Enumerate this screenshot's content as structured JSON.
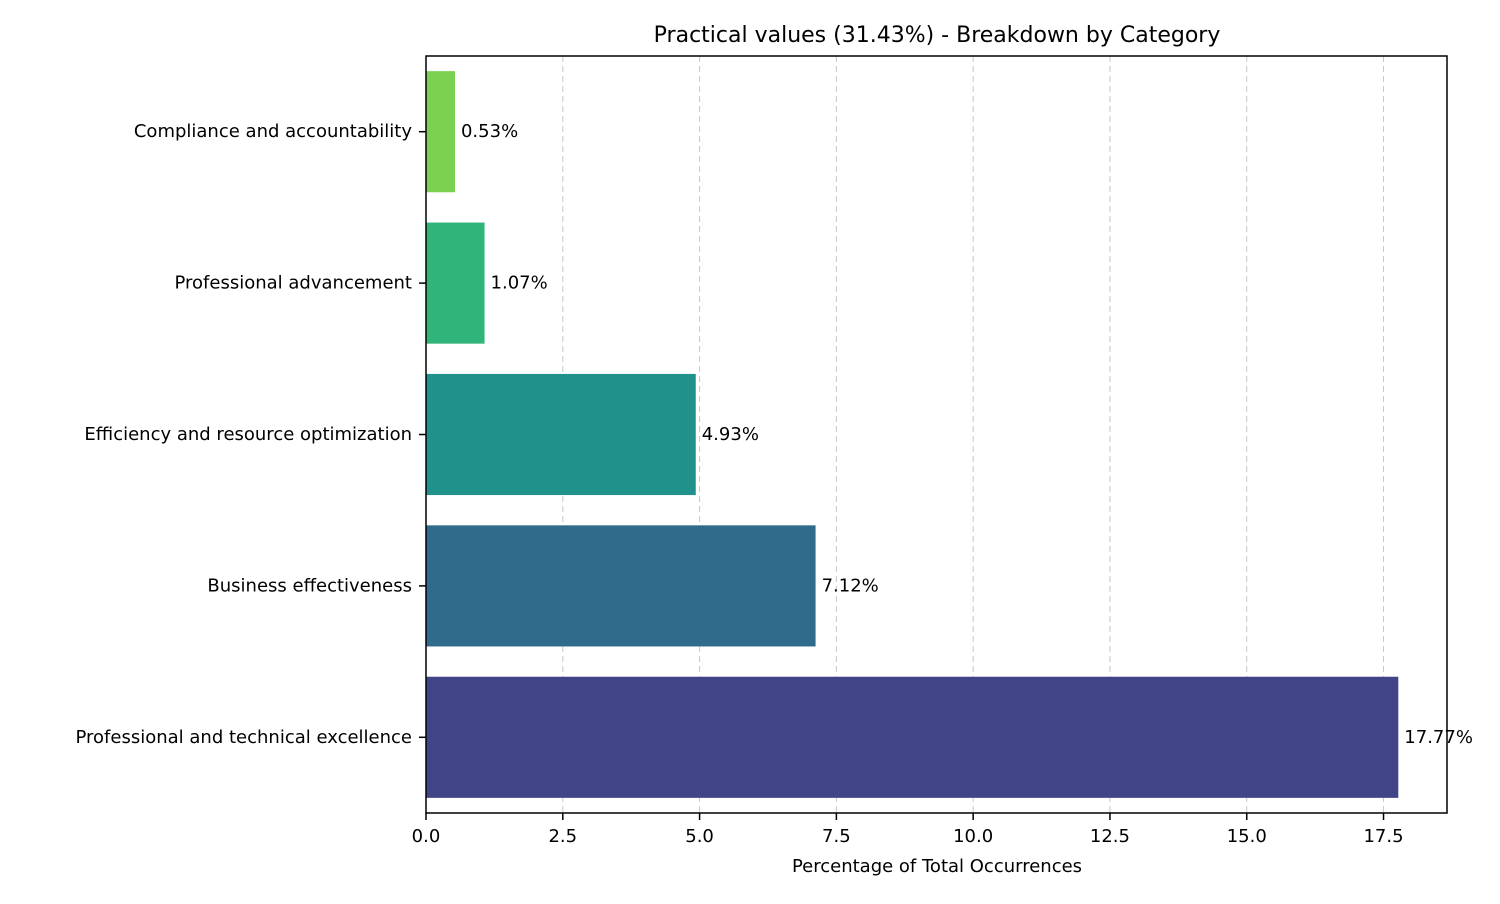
{
  "chart_data": {
    "type": "bar",
    "orientation": "horizontal",
    "title": "Practical values (31.43%) - Breakdown by Category",
    "xlabel": "Percentage of Total Occurrences",
    "ylabel": "",
    "xlim": [
      0,
      18.66
    ],
    "xticks": [
      0.0,
      2.5,
      5.0,
      7.5,
      10.0,
      12.5,
      15.0,
      17.5
    ],
    "xtick_labels": [
      "0.0",
      "2.5",
      "5.0",
      "7.5",
      "10.0",
      "12.5",
      "15.0",
      "17.5"
    ],
    "grid": "x-axis dashed",
    "categories": [
      "Professional and technical excellence",
      "Business effectiveness",
      "Efficiency and resource optimization",
      "Professional advancement",
      "Compliance and accountability"
    ],
    "values": [
      17.77,
      7.12,
      4.93,
      1.07,
      0.53
    ],
    "value_labels": [
      "17.77%",
      "7.12%",
      "4.93%",
      "1.07%",
      "0.53%"
    ],
    "colors": [
      "#414487",
      "#306b8c",
      "#20918b",
      "#31b479",
      "#7bd150"
    ]
  }
}
